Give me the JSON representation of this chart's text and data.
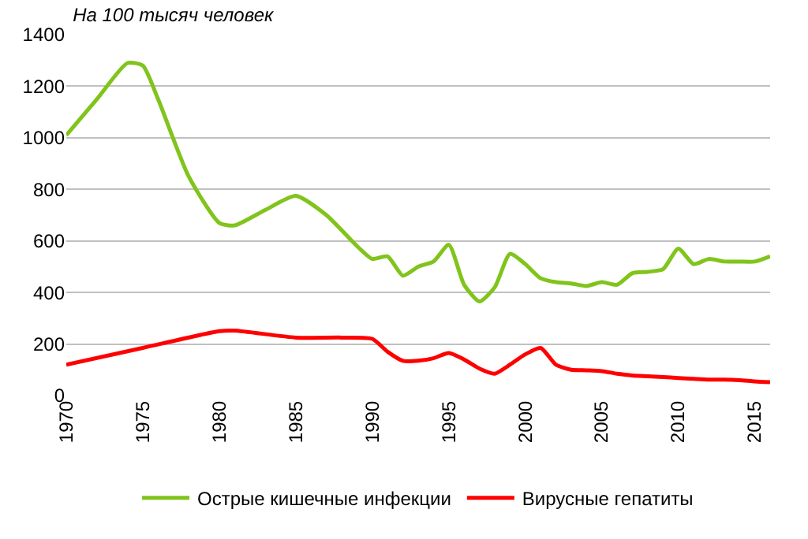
{
  "chart_data": {
    "type": "line",
    "title": "На 100 тысяч человек",
    "series": [
      {
        "name": "Острые кишечные инфекции",
        "color": "#80c41c",
        "x": [
          1970,
          1972,
          1974,
          1975,
          1976,
          1978,
          1980,
          1981,
          1983,
          1985,
          1987,
          1989,
          1990,
          1991,
          1992,
          1993,
          1994,
          1995,
          1996,
          1997,
          1998,
          1999,
          2000,
          2001,
          2002,
          2003,
          2004,
          2005,
          2006,
          2007,
          2008,
          2009,
          2010,
          2011,
          2012,
          2013,
          2014,
          2015,
          2016
        ],
        "values": [
          1010,
          1150,
          1290,
          1280,
          1150,
          850,
          670,
          660,
          720,
          775,
          700,
          580,
          530,
          540,
          465,
          500,
          520,
          585,
          430,
          365,
          420,
          550,
          510,
          455,
          440,
          435,
          425,
          440,
          430,
          475,
          480,
          490,
          570,
          510,
          530,
          520,
          520,
          520,
          540
        ]
      },
      {
        "name": "Вирусные гепатиты",
        "color": "#ff0000",
        "x": [
          1970,
          1975,
          1980,
          1981,
          1985,
          1988,
          1990,
          1991,
          1992,
          1993,
          1994,
          1995,
          1996,
          1997,
          1998,
          1999,
          2000,
          2001,
          2002,
          2003,
          2004,
          2005,
          2006,
          2007,
          2008,
          2009,
          2010,
          2011,
          2012,
          2013,
          2014,
          2015,
          2016
        ],
        "values": [
          120,
          185,
          250,
          252,
          225,
          225,
          220,
          170,
          135,
          135,
          145,
          165,
          140,
          105,
          85,
          120,
          160,
          185,
          120,
          100,
          98,
          95,
          85,
          78,
          75,
          72,
          68,
          65,
          62,
          62,
          60,
          55,
          52
        ]
      }
    ],
    "xlim": [
      1970,
      2016
    ],
    "xticks": [
      1970,
      1975,
      1980,
      1985,
      1990,
      1995,
      2000,
      2005,
      2010,
      2015
    ],
    "ylim": [
      0,
      1400
    ],
    "yticks": [
      0,
      200,
      400,
      600,
      800,
      1000,
      1200,
      1400
    ],
    "grid": "y",
    "legend": "bottom",
    "marker": "none",
    "line_style": "solid"
  }
}
